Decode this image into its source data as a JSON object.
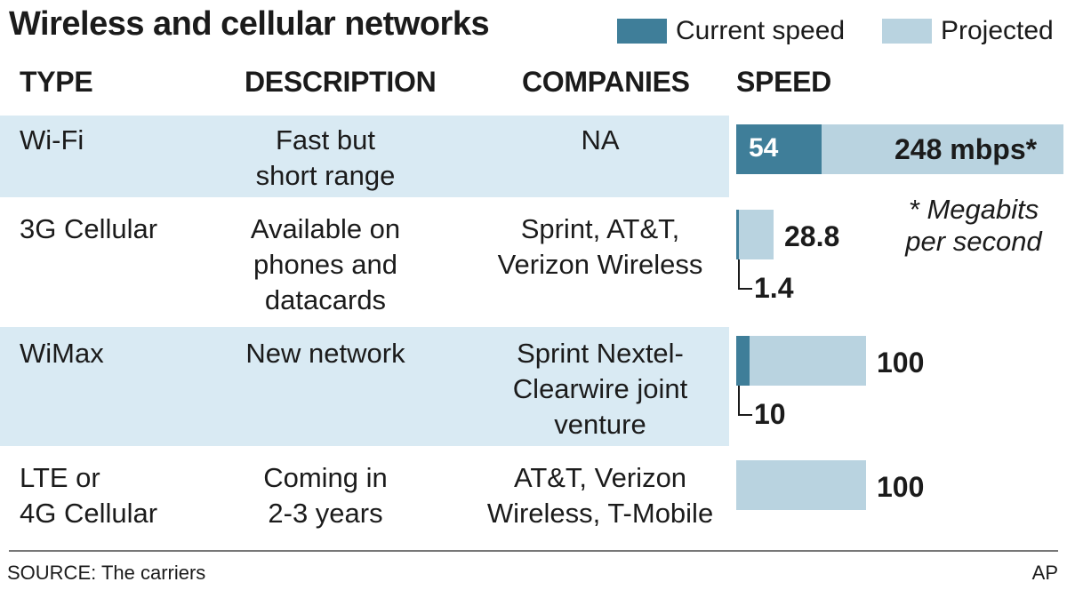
{
  "title": "Wireless and cellular networks",
  "legend": {
    "current": {
      "label": "Current speed",
      "color": "#3f7e99"
    },
    "projected": {
      "label": "Projected",
      "color": "#b9d3e0"
    }
  },
  "headers": {
    "type": "TYPE",
    "description": "DESCRIPTION",
    "companies": "COMPANIES",
    "speed": "SPEED"
  },
  "rows": [
    {
      "type": [
        "Wi-Fi"
      ],
      "description": [
        "Fast but",
        "short range"
      ],
      "companies": [
        "NA"
      ],
      "current_label": "54",
      "projected_label": "248 mbps*"
    },
    {
      "type": [
        "3G Cellular"
      ],
      "description": [
        "Available on",
        "phones and",
        "datacards"
      ],
      "companies": [
        "Sprint, AT&T,",
        "Verizon Wireless"
      ],
      "current_label": "1.4",
      "projected_label": "28.8"
    },
    {
      "type": [
        "WiMax"
      ],
      "description": [
        "New network"
      ],
      "companies": [
        "Sprint Nextel-",
        "Clearwire joint",
        "venture"
      ],
      "current_label": "10",
      "projected_label": "100"
    },
    {
      "type": [
        "LTE or",
        "4G Cellular"
      ],
      "description": [
        "Coming in",
        "2-3 years"
      ],
      "companies": [
        "AT&T, Verizon",
        "Wireless, T-Mobile"
      ],
      "current_label": "",
      "projected_label": "100"
    }
  ],
  "footnote": [
    "* Megabits",
    "per second"
  ],
  "source": "SOURCE: The carriers",
  "credit": "AP",
  "chart_data": {
    "type": "bar",
    "orientation": "horizontal",
    "categories": [
      "Wi-Fi",
      "3G Cellular",
      "WiMax",
      "LTE or 4G Cellular"
    ],
    "series": [
      {
        "name": "Current speed",
        "values": [
          54,
          1.4,
          10,
          null
        ]
      },
      {
        "name": "Projected",
        "values": [
          248,
          28.8,
          100,
          100
        ]
      }
    ],
    "units": "mbps",
    "title": "Wireless and cellular networks"
  }
}
